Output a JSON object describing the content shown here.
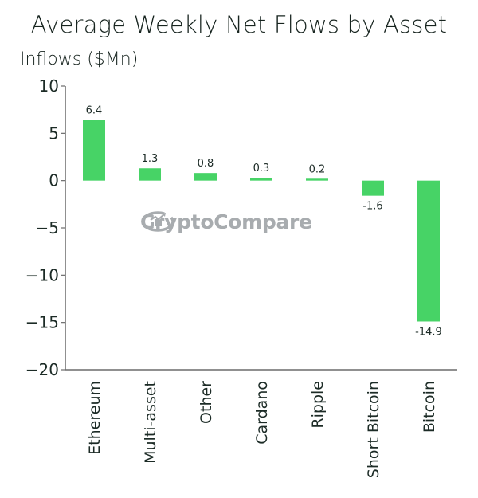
{
  "chart_data": {
    "type": "bar",
    "title": "Average Weekly Net Flows by Asset",
    "xlabel": "",
    "ylabel": "Inflows ($Mn)",
    "categories": [
      "Ethereum",
      "Multi-asset",
      "Other",
      "Cardano",
      "Ripple",
      "Short Bitcoin",
      "Bitcoin"
    ],
    "values": [
      6.4,
      1.3,
      0.8,
      0.3,
      0.2,
      -1.6,
      -14.9
    ],
    "data_labels": [
      "6.4",
      "1.3",
      "0.8",
      "0.3",
      "0.2",
      "-1.6",
      "-14.9"
    ],
    "ylim": [
      -20,
      10
    ],
    "yticks": [
      10,
      5,
      0,
      -5,
      -10,
      -15,
      -20
    ],
    "ytick_labels": [
      "10",
      "5",
      "0",
      "−5",
      "−10",
      "−15",
      "−20"
    ],
    "grid": false,
    "legend": "none",
    "bar_color": "#47d366",
    "axis_color": "#6b6b6b"
  },
  "watermark": {
    "text": "CryptoCompare",
    "icon": "chart-growth-icon",
    "color": "#9a9ea2"
  }
}
